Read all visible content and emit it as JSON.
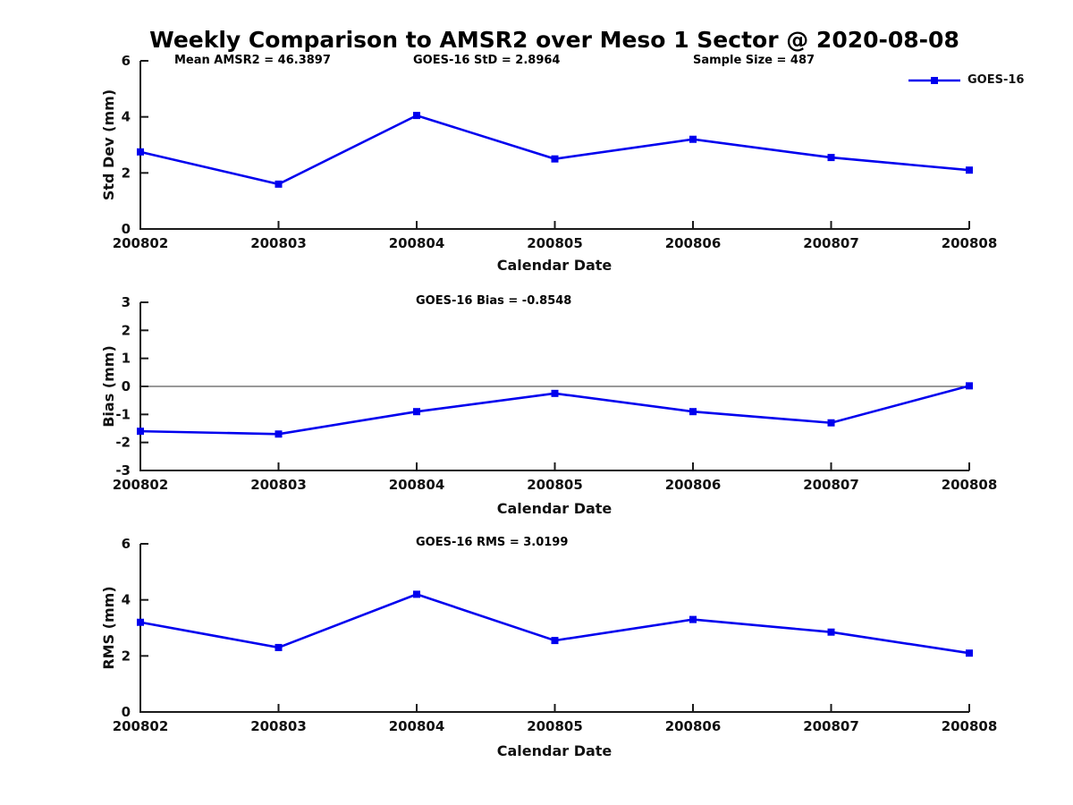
{
  "page_title": "Weekly Comparison to AMSR2 over Meso 1 Sector @ 2020-08-08",
  "legend": {
    "label": "GOES-16",
    "color": "#0000ee"
  },
  "chart_data": [
    {
      "id": "stddev",
      "type": "line",
      "ylabel": "Std Dev (mm)",
      "xlabel": "Calendar Date",
      "annotations": [
        "Mean AMSR2 = 46.3897",
        "GOES-16 StD = 2.8964",
        "Sample Size = 487"
      ],
      "categories": [
        "200802",
        "200803",
        "200804",
        "200805",
        "200806",
        "200807",
        "200808"
      ],
      "series": [
        {
          "name": "GOES-16",
          "color": "#0000ee",
          "values": [
            2.75,
            1.6,
            4.05,
            2.5,
            3.2,
            2.55,
            2.1
          ]
        }
      ],
      "ylim": [
        0,
        6
      ],
      "yticks": [
        0,
        2,
        4,
        6
      ],
      "grid": false,
      "legend_position": "top-right",
      "marker": "square"
    },
    {
      "id": "bias",
      "type": "line",
      "ylabel": "Bias (mm)",
      "xlabel": "Calendar Date",
      "annotations": [
        "GOES-16 Bias  = -0.8548"
      ],
      "categories": [
        "200802",
        "200803",
        "200804",
        "200805",
        "200806",
        "200807",
        "200808"
      ],
      "series": [
        {
          "name": "GOES-16",
          "color": "#0000ee",
          "values": [
            -1.6,
            -1.7,
            -0.9,
            -0.25,
            -0.9,
            -1.3,
            0.02
          ]
        }
      ],
      "ylim": [
        -3,
        3
      ],
      "yticks": [
        -3,
        -2,
        -1,
        0,
        1,
        2,
        3
      ],
      "zero_line": true,
      "grid": false,
      "marker": "square"
    },
    {
      "id": "rms",
      "type": "line",
      "ylabel": "RMS (mm)",
      "xlabel": "Calendar Date",
      "annotations": [
        "GOES-16 RMS = 3.0199"
      ],
      "categories": [
        "200802",
        "200803",
        "200804",
        "200805",
        "200806",
        "200807",
        "200808"
      ],
      "series": [
        {
          "name": "GOES-16",
          "color": "#0000ee",
          "values": [
            3.2,
            2.3,
            4.2,
            2.55,
            3.3,
            2.85,
            2.1
          ]
        }
      ],
      "ylim": [
        0,
        6
      ],
      "yticks": [
        0,
        2,
        4,
        6
      ],
      "grid": false,
      "marker": "square"
    }
  ]
}
